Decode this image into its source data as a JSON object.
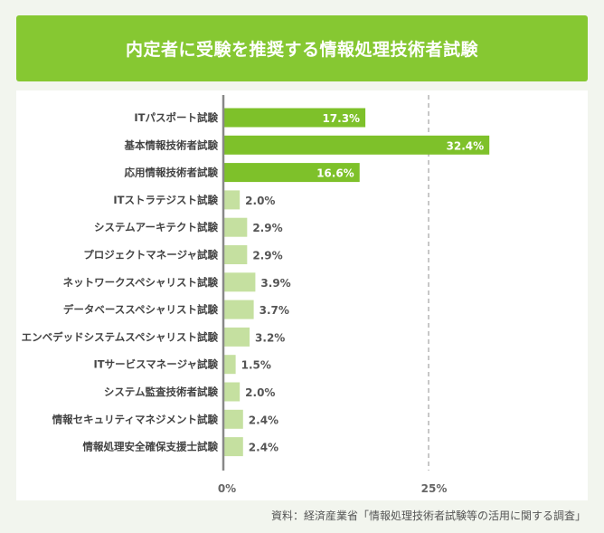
{
  "title": "内定者に受験を推奨する情報処理技術者試験",
  "source": "資料：経済産業省「情報処理技術者試験等の活用に関する調査」",
  "colors": {
    "title_bg": "#86c832",
    "bar_highlight": "#7ec12a",
    "bar_normal": "#c5e0a0",
    "axis": "#888888",
    "gridline": "#aaaaaa",
    "value_inside": "#ffffff",
    "value_outside": "#555555"
  },
  "chart_data": {
    "type": "bar",
    "orientation": "horizontal",
    "categories": [
      "ITパスポート試験",
      "基本情報技術者試験",
      "応用情報技術者試験",
      "ITストラテジスト試験",
      "システムアーキテクト試験",
      "プロジェクトマネージャ試験",
      "ネットワークスペシャリスト試験",
      "データベーススペシャリスト試験",
      "エンベデッドシステムスペシャリスト試験",
      "ITサービスマネージャ試験",
      "システム監査技術者試験",
      "情報セキュリティマネジメント試験",
      "情報処理安全確保支援士試験"
    ],
    "values": [
      17.3,
      32.4,
      16.6,
      2.0,
      2.9,
      2.9,
      3.9,
      3.7,
      3.2,
      1.5,
      2.0,
      2.4,
      2.4
    ],
    "value_labels": [
      "17.3%",
      "32.4%",
      "16.6%",
      "2.0%",
      "2.9%",
      "2.9%",
      "3.9%",
      "3.7%",
      "3.2%",
      "1.5%",
      "2.0%",
      "2.4%",
      "2.4%"
    ],
    "highlighted": [
      true,
      true,
      true,
      false,
      false,
      false,
      false,
      false,
      false,
      false,
      false,
      false,
      false
    ],
    "xlim": [
      0,
      40
    ],
    "ticks": [
      0,
      25
    ],
    "tick_labels": [
      "0%",
      "25%"
    ],
    "gridlines": [
      25
    ],
    "grid": "dashed at 25%",
    "legend": "none"
  }
}
